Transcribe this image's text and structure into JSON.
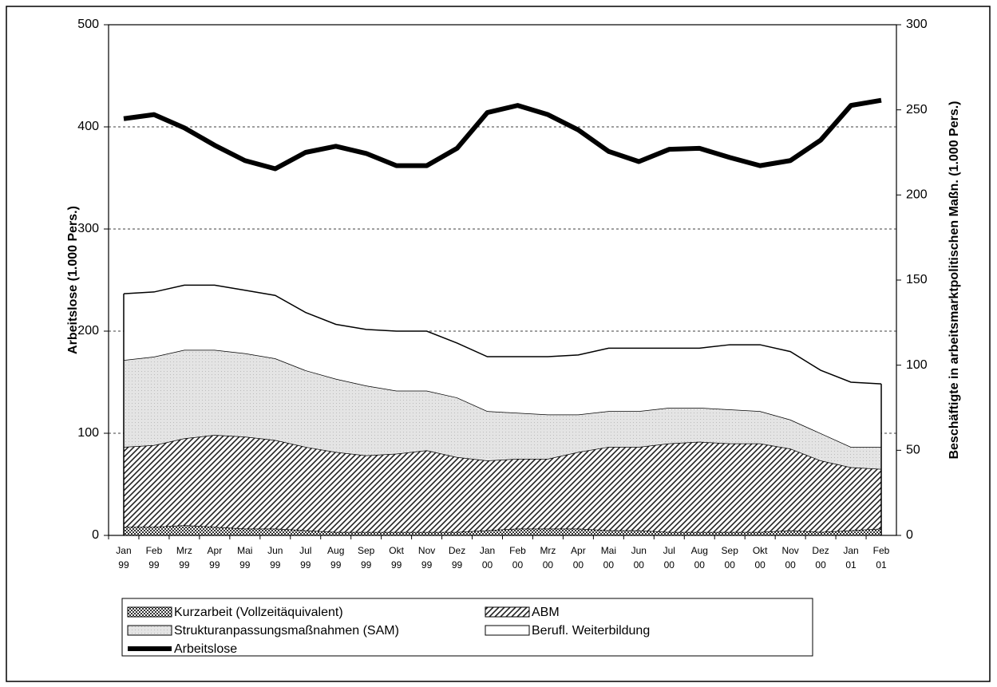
{
  "chart_data": {
    "type": "area",
    "ylabel": "Arbeitslose (1.000 Pers.)",
    "y2label": "Beschäftigte in arbeitsmarktpolitischen Maßn. (1.000 Pers.)",
    "categories": [
      "Jan 99",
      "Feb 99",
      "Mrz 99",
      "Apr 99",
      "Mai 99",
      "Jun 99",
      "Jul 99",
      "Aug 99",
      "Sep 99",
      "Okt 99",
      "Nov 99",
      "Dez 99",
      "Jan 00",
      "Feb 00",
      "Mrz 00",
      "Apr 00",
      "Mai 00",
      "Jun 00",
      "Jul 00",
      "Aug 00",
      "Sep 00",
      "Okt 00",
      "Nov 00",
      "Dez 00",
      "Jan 01",
      "Feb 01"
    ],
    "ylim": [
      0,
      500
    ],
    "yticks": [
      0,
      100,
      200,
      300,
      400,
      500
    ],
    "y2lim": [
      0,
      300
    ],
    "y2ticks": [
      0,
      50,
      100,
      150,
      200,
      250,
      300
    ],
    "grid": true,
    "series": [
      {
        "name": "Kurzarbeit (Vollzeitäquivalent)",
        "color": "#333333",
        "axis": "y2",
        "values": [
          5,
          5,
          6,
          5,
          4,
          4,
          3,
          2,
          2,
          2,
          2,
          2,
          3,
          4,
          4,
          4,
          3,
          3,
          2,
          2,
          2,
          2,
          3,
          2,
          3,
          4
        ]
      },
      {
        "name": "ABM",
        "color": "#222222",
        "axis": "y2",
        "values": [
          47,
          48,
          51,
          54,
          54,
          52,
          49,
          47,
          45,
          46,
          48,
          44,
          41,
          41,
          41,
          45,
          49,
          49,
          52,
          53,
          52,
          52,
          48,
          42,
          37,
          35
        ]
      },
      {
        "name": "Strukturanpassungsmaßnahmen (SAM)",
        "color": "#e4e4e4",
        "axis": "y2",
        "values": [
          51,
          52,
          52,
          50,
          49,
          48,
          45,
          43,
          41,
          37,
          35,
          35,
          29,
          27,
          26,
          22,
          21,
          21,
          21,
          20,
          20,
          19,
          17,
          16,
          12,
          13
        ]
      },
      {
        "name": "Berufl. Weiterbildung",
        "color": "#ffffff",
        "axis": "y2",
        "values": [
          39,
          38,
          38,
          38,
          37,
          37,
          34,
          32,
          33,
          35,
          35,
          32,
          32,
          33,
          34,
          35,
          37,
          37,
          35,
          35,
          38,
          39,
          40,
          37,
          38,
          37
        ]
      },
      {
        "name": "Arbeitslose",
        "color": "#000000",
        "type": "line",
        "values": [
          408,
          412,
          399,
          382,
          367,
          359,
          375,
          381,
          374,
          362,
          362,
          379,
          414,
          421,
          412,
          397,
          376,
          366,
          378,
          379,
          370,
          362,
          367,
          387,
          421,
          426
        ]
      }
    ]
  }
}
